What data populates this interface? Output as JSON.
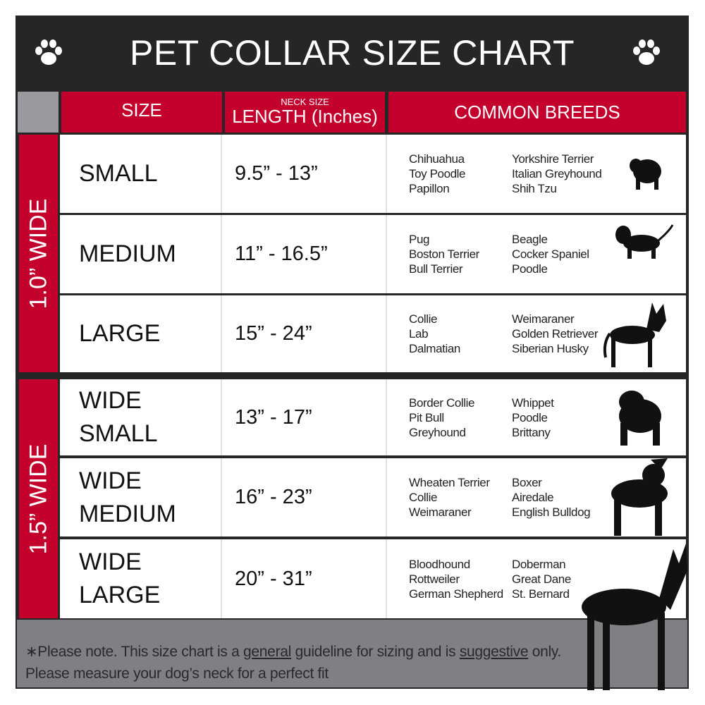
{
  "title": "PET COLLAR SIZE CHART",
  "icons": {
    "left": "paw-print-icon",
    "right": "paw-print-icon"
  },
  "colors": {
    "header_red": "#c4002c",
    "title_bg": "#262626",
    "footer_gray": "#7f7f84"
  },
  "header": {
    "size": "SIZE",
    "length_small": "NECK SIZE",
    "length": "LENGTH (Inches)",
    "breeds": "COMMON BREEDS"
  },
  "groups": [
    {
      "label": "1.0” WIDE"
    },
    {
      "label": "1.5” WIDE"
    }
  ],
  "rows": [
    {
      "size": "SMALL",
      "length": "9.5” - 13”",
      "breeds_a": [
        "Chihuahua",
        "Toy Poodle",
        "Papillon"
      ],
      "breeds_b": [
        "Yorkshire Terrier",
        "Italian Greyhound",
        "Shih Tzu"
      ],
      "icon": "small-dog-silhouette-icon"
    },
    {
      "size": "MEDIUM",
      "length": "11” - 16.5”",
      "breeds_a": [
        "Pug",
        "Boston Terrier",
        "Bull Terrier"
      ],
      "breeds_b": [
        "Beagle",
        "Cocker Spaniel",
        "Poodle"
      ],
      "icon": "beagle-silhouette-icon"
    },
    {
      "size": "LARGE",
      "length": "15” - 24”",
      "breeds_a": [
        "Collie",
        "Lab",
        "Dalmatian"
      ],
      "breeds_b": [
        "Weimaraner",
        "Golden Retriever",
        "Siberian Husky"
      ],
      "icon": "husky-silhouette-icon"
    },
    {
      "size": "WIDE SMALL",
      "length": "13” - 17”",
      "breeds_a": [
        "Border Collie",
        "Pit Bull",
        "Greyhound"
      ],
      "breeds_b": [
        "Whippet",
        "Poodle",
        "Brittany"
      ],
      "icon": "bulldog-silhouette-icon"
    },
    {
      "size": "WIDE MEDIUM",
      "length": "16” - 23”",
      "breeds_a": [
        "Wheaten Terrier",
        "Collie",
        "Weimaraner"
      ],
      "breeds_b": [
        "Boxer",
        "Airedale",
        "English Bulldog"
      ],
      "icon": "pitbull-silhouette-icon"
    },
    {
      "size": "WIDE LARGE",
      "length": "20” - 31”",
      "breeds_a": [
        "Bloodhound",
        "Rottweiler",
        "German Shepherd"
      ],
      "breeds_b": [
        "Doberman",
        "Great Dane",
        "St. Bernard"
      ],
      "icon": "doberman-silhouette-icon"
    }
  ],
  "footer": {
    "line1_a": "∗Please note. This size chart is a",
    "line1_u1": "general",
    "line1_b": "guideline for sizing and is",
    "line1_u2": "suggestive",
    "line1_c": "only.",
    "line2": "Please measure your dog’s neck for a perfect fit"
  }
}
